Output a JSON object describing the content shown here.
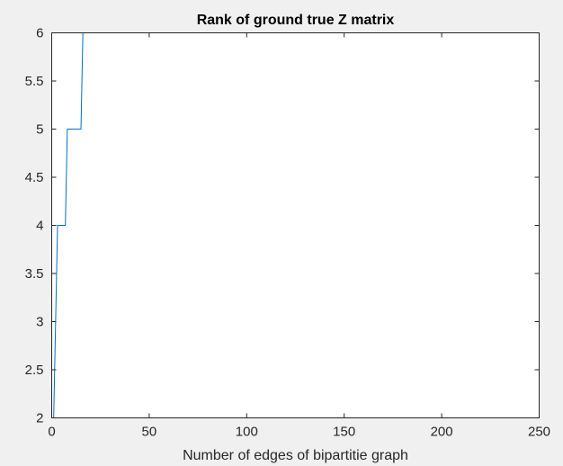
{
  "chart_data": {
    "type": "line",
    "title": "Rank of ground true Z matrix",
    "xlabel": "Number of edges of bipartitie graph",
    "ylabel": "",
    "xlim": [
      0,
      250
    ],
    "ylim": [
      2,
      6
    ],
    "xticks": [
      0,
      50,
      100,
      150,
      200,
      250
    ],
    "yticks": [
      2,
      2.5,
      3,
      3.5,
      4,
      4.5,
      5,
      5.5,
      6
    ],
    "xtick_labels": [
      "0",
      "50",
      "100",
      "150",
      "200",
      "250"
    ],
    "ytick_labels": [
      "2",
      "2.5",
      "3",
      "3.5",
      "4",
      "4.5",
      "5",
      "5.5",
      "6"
    ],
    "grid": false,
    "legend": "none",
    "series": [
      {
        "color": "#0072bd",
        "x": [
          1,
          2,
          3,
          4,
          5,
          6,
          7,
          8,
          9,
          10,
          11,
          12,
          13,
          14,
          15,
          16,
          17,
          250
        ],
        "y": [
          2,
          3,
          4,
          4,
          4,
          4,
          4,
          5,
          5,
          5,
          5,
          5,
          5,
          5,
          5,
          6,
          6,
          6
        ]
      }
    ]
  }
}
